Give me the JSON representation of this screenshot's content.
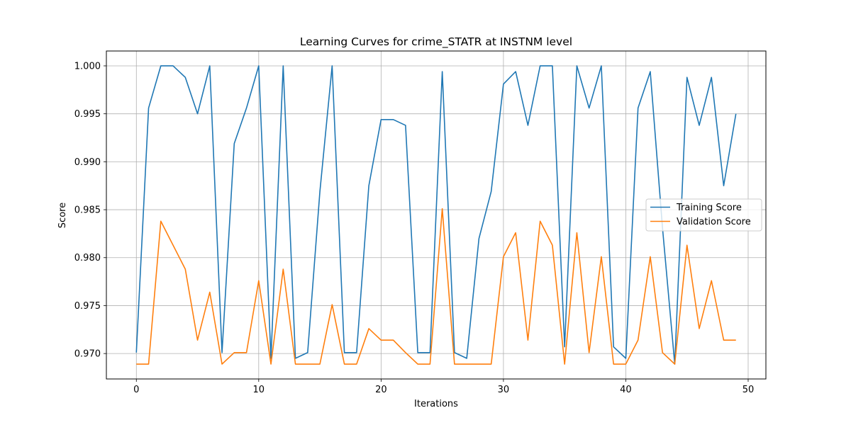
{
  "chart_data": {
    "type": "line",
    "title": "Learning Curves for crime_STATR at INSTNM level",
    "xlabel": "Iterations",
    "ylabel": "Score",
    "xlim": [
      -2.45,
      51.45
    ],
    "ylim": [
      0.96735,
      1.00155
    ],
    "xticks": [
      0,
      10,
      20,
      30,
      40,
      50
    ],
    "xtick_labels": [
      "0",
      "10",
      "20",
      "30",
      "40",
      "50"
    ],
    "yticks": [
      0.97,
      0.975,
      0.98,
      0.985,
      0.99,
      0.995,
      1.0
    ],
    "ytick_labels": [
      "0.970",
      "0.975",
      "0.980",
      "0.985",
      "0.990",
      "0.995",
      "1.000"
    ],
    "grid": true,
    "legend_position": "center-right",
    "x": [
      0,
      1,
      2,
      3,
      4,
      5,
      6,
      7,
      8,
      9,
      10,
      11,
      12,
      13,
      14,
      15,
      16,
      17,
      18,
      19,
      20,
      21,
      22,
      23,
      24,
      25,
      26,
      27,
      28,
      29,
      30,
      31,
      32,
      33,
      34,
      35,
      36,
      37,
      38,
      39,
      40,
      41,
      42,
      43,
      44,
      45,
      46,
      47,
      48,
      49
    ],
    "series": [
      {
        "name": "Training Score",
        "color": "#1f77b4",
        "values": [
          0.9701,
          0.9956,
          1.0,
          1.0,
          0.9988,
          0.995,
          1.0,
          0.9701,
          0.9919,
          0.9956,
          1.0,
          0.9695,
          1.0,
          0.9695,
          0.9701,
          0.9869,
          1.0,
          0.9701,
          0.9701,
          0.9875,
          0.9944,
          0.9944,
          0.9938,
          0.9701,
          0.9701,
          0.9994,
          0.9701,
          0.9695,
          0.982,
          0.9869,
          0.9981,
          0.9994,
          0.9938,
          1.0,
          1.0,
          0.9707,
          1.0,
          0.9956,
          1.0,
          0.9707,
          0.9695,
          0.9956,
          0.9994,
          0.9831,
          0.9689,
          0.9988,
          0.9938,
          0.9988,
          0.9875,
          0.995
        ]
      },
      {
        "name": "Validation Score",
        "color": "#ff7f0e",
        "values": [
          0.9689,
          0.9689,
          0.9838,
          0.9813,
          0.9788,
          0.9714,
          0.9764,
          0.9689,
          0.9701,
          0.9701,
          0.9776,
          0.9689,
          0.9788,
          0.9689,
          0.9689,
          0.9689,
          0.9751,
          0.9689,
          0.9689,
          0.9726,
          0.9714,
          0.9714,
          0.9701,
          0.9689,
          0.9689,
          0.9851,
          0.9689,
          0.9689,
          0.9689,
          0.9689,
          0.9801,
          0.9826,
          0.9714,
          0.9838,
          0.9813,
          0.9689,
          0.9826,
          0.9701,
          0.9801,
          0.9689,
          0.9689,
          0.9714,
          0.9801,
          0.9701,
          0.9689,
          0.9813,
          0.9726,
          0.9776,
          0.9714,
          0.9714
        ]
      }
    ]
  }
}
